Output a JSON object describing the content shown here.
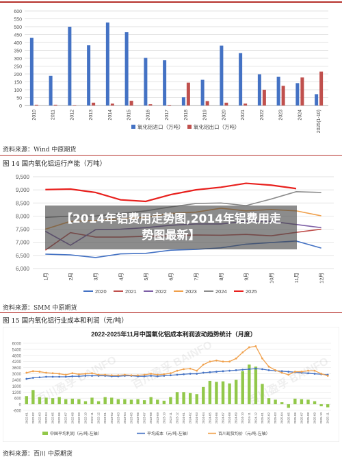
{
  "banner": {
    "title": "【2014年铝费用走势图,2014年铝费用走势图最新】"
  },
  "chart1": {
    "source": "资料来源：Wind 中原期货",
    "legend": [
      "氧化铝进口（万吨）",
      "氧化铝出口（万吨）"
    ]
  },
  "chart2": {
    "caption": "图 14 国内氧化铝运行产能（万吨）",
    "source": "资料来源：SMM 中原期货"
  },
  "chart3": {
    "caption": "图 15 国内氧化铝行业成本和利润（元/吨）",
    "title": "2022-2025年11月中国氧化铝成本利润波动趋势统计（月度）",
    "legend": [
      "中国平均利润（元/吨-左轴）",
      "平均成本（元/吨-左轴）",
      "百川现货均价（元/吨-左轴）"
    ],
    "watermark": "百川盈孚 BAINFO",
    "source": "资料来源：百川 中原期货"
  },
  "colors": {
    "blue": "#4472c4",
    "red": "#c0504d",
    "purple": "#7d5fa6",
    "orange": "#f0a04b",
    "gray": "#8c8c8c",
    "brightred": "#e8201d",
    "green": "#92c84a",
    "rule": "#b5302a"
  },
  "chart_data": [
    {
      "type": "bar",
      "categories": [
        "2010",
        "2011",
        "2012",
        "2013",
        "2014",
        "2015",
        "2016",
        "2017",
        "2018",
        "2019",
        "2020",
        "2021",
        "2022",
        "2023",
        "2024",
        "2025(1-10)"
      ],
      "series": [
        {
          "name": "氧化铝进口（万吨）",
          "values": [
            430,
            188,
            500,
            382,
            527,
            465,
            302,
            287,
            52,
            163,
            380,
            333,
            198,
            183,
            142,
            72
          ]
        },
        {
          "name": "氧化铝出口（万吨）",
          "values": [
            5,
            5,
            3,
            18,
            12,
            30,
            8,
            4,
            145,
            28,
            18,
            12,
            100,
            125,
            178,
            215
          ]
        }
      ],
      "ylim": [
        0,
        600
      ],
      "yticks": [
        0,
        50,
        100,
        150,
        200,
        250,
        300,
        350,
        400,
        450,
        500,
        550,
        600
      ],
      "legend_position": "bottom",
      "grid": true
    },
    {
      "type": "line",
      "categories": [
        "1月",
        "2月",
        "3月",
        "4月",
        "5月",
        "6月",
        "7月",
        "8月",
        "9月",
        "10月",
        "11月",
        "12月"
      ],
      "series": [
        {
          "name": "2020",
          "values": [
            6550,
            6520,
            6420,
            6560,
            6580,
            6700,
            6730,
            6790,
            6930,
            6990,
            7050,
            6780
          ]
        },
        {
          "name": "2021",
          "values": [
            6700,
            7370,
            7200,
            7200,
            7230,
            7250,
            7280,
            7270,
            7300,
            7250,
            7380,
            7500
          ]
        },
        {
          "name": "2022",
          "values": [
            7420,
            6890,
            7480,
            7500,
            7560,
            7650,
            7700,
            7700,
            7800,
            7800,
            7680,
            7560
          ]
        },
        {
          "name": "2023",
          "values": [
            7500,
            7800,
            7830,
            7900,
            7950,
            8100,
            8150,
            8300,
            8200,
            8250,
            8200,
            8010
          ]
        },
        {
          "name": "2024",
          "values": [
            7950,
            8000,
            8000,
            8100,
            8200,
            8350,
            8480,
            8500,
            8400,
            8650,
            8930,
            8900
          ]
        },
        {
          "name": "2025",
          "values": [
            9010,
            9030,
            8900,
            8620,
            8560,
            8820,
            9000,
            9100,
            9250,
            9180,
            9050,
            null
          ]
        }
      ],
      "ylim": [
        6000,
        9500
      ],
      "yticks": [
        "6,000",
        "6,500",
        "7,000",
        "7,500",
        "8,000",
        "8,500",
        "9,000",
        "9,500"
      ],
      "legend_position": "bottom",
      "grid": true
    },
    {
      "type": "bar",
      "title": "2022-2025年11月中国氧化铝成本利润波动趋势统计（月度）",
      "categories": [
        "2022-01",
        "2022-02",
        "2022-03",
        "2022-04",
        "2022-05",
        "2022-06",
        "2022-07",
        "2022-08",
        "2022-09",
        "2022-10",
        "2022-11",
        "2022-12",
        "2023-01",
        "2023-02",
        "2023-03",
        "2023-04",
        "2023-05",
        "2023-06",
        "2023-07",
        "2023-08",
        "2023-09",
        "2023-10",
        "2023-11",
        "2023-12",
        "2024-01",
        "2024-02",
        "2024-03",
        "2024-04",
        "2024-05",
        "2024-06",
        "2024-07",
        "2024-08",
        "2024-09",
        "2024-10",
        "2024-11",
        "2024-12",
        "2025-01",
        "2025-02",
        "2025-03",
        "2025-04",
        "2025-05",
        "2025-06",
        "2025-07",
        "2025-08",
        "2025-09",
        "2025-10",
        "2025-11"
      ],
      "series": [
        {
          "name": "中国平均利润（元/吨-左轴）",
          "values": [
            800,
            1400,
            700,
            650,
            600,
            700,
            500,
            550,
            500,
            300,
            650,
            300,
            700,
            650,
            500,
            500,
            450,
            500,
            400,
            700,
            450,
            350,
            700,
            1200,
            1200,
            1100,
            1000,
            1700,
            2300,
            2200,
            2250,
            2050,
            2400,
            3250,
            3900,
            3700,
            2000,
            600,
            450,
            200,
            -350,
            550,
            500,
            450,
            300,
            -200,
            -300
          ]
        },
        {
          "name": "平均成本（元/吨-左轴）",
          "values": [
            2500,
            2600,
            2650,
            2700,
            2700,
            2700,
            2700,
            2750,
            2750,
            2800,
            2800,
            2800,
            2800,
            2750,
            2750,
            2800,
            2800,
            2750,
            2750,
            2800,
            2750,
            2800,
            2850,
            2900,
            2950,
            3000,
            3000,
            3100,
            3150,
            3200,
            3250,
            3300,
            3350,
            3400,
            3450,
            3500,
            3450,
            3350,
            3300,
            3250,
            3200,
            3150,
            3100,
            3050,
            3000,
            2950,
            2900
          ]
        },
        {
          "name": "百川现货均价（元/吨-左轴）",
          "values": [
            3100,
            3250,
            3200,
            3100,
            3050,
            3000,
            2900,
            3050,
            2950,
            3000,
            3050,
            2900,
            2900,
            2850,
            2850,
            2900,
            2850,
            2850,
            2900,
            3000,
            2900,
            2950,
            3050,
            3300,
            3450,
            3500,
            3300,
            3900,
            4200,
            4300,
            4200,
            4200,
            4500,
            5100,
            5600,
            5700,
            4500,
            3700,
            3350,
            3100,
            2900,
            3200,
            3200,
            3300,
            3300,
            3000,
            2800
          ]
        }
      ],
      "ylim": [
        -600,
        6000
      ],
      "yticks": [
        "-600",
        "0",
        "600",
        "1200",
        "1800",
        "2400",
        "3000",
        "3600",
        "4200",
        "4800",
        "5400",
        "6000"
      ],
      "legend_position": "bottom",
      "grid": true
    }
  ]
}
